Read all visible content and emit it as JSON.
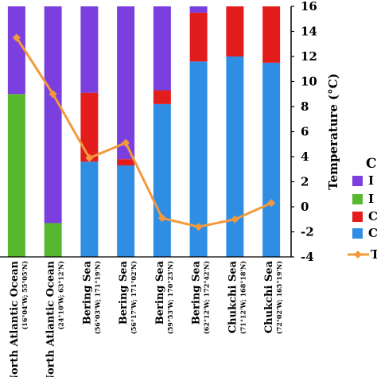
{
  "chart_data": {
    "type": "bar",
    "stacked": true,
    "categories": [
      {
        "name": "North Atlantic Ocean",
        "coord": "(16°04'W; 55°05'N)"
      },
      {
        "name": "North Atlantic Ocean",
        "coord": "(24°10'W; 63°12'N)"
      },
      {
        "name": "Bering Sea",
        "coord": "(56°03'W; 171°19'N)"
      },
      {
        "name": "Bering Sea",
        "coord": "(56°17'W; 171°02'N)"
      },
      {
        "name": "Bering Sea",
        "coord": "(59°53'W; 170°23'N)"
      },
      {
        "name": "Bering Sea",
        "coord": "(62°12'W; 172°42'N)"
      },
      {
        "name": "Chukchi Sea",
        "coord": "(71°12'W; 168°18'N)"
      },
      {
        "name": "Chukchi Sea",
        "coord": "(72°02'W; 165°19'N)"
      }
    ],
    "series": [
      {
        "name": "C",
        "legend_label": "C",
        "color": "#2f8de4",
        "values": [
          null,
          null,
          7.6,
          7.3,
          12.2,
          15.6,
          16.0,
          15.5
        ]
      },
      {
        "name": "C",
        "legend_label": "C",
        "color": "#e31c1c",
        "values": [
          null,
          null,
          5.5,
          0.5,
          1.1,
          3.9,
          4.0,
          4.5
        ]
      },
      {
        "name": "I",
        "legend_label": "I",
        "color": "#57b82f",
        "values": [
          13.0,
          2.7,
          null,
          null,
          null,
          null,
          null,
          null
        ]
      },
      {
        "name": "I",
        "legend_label": "I",
        "color": "#7b3fe0",
        "values": [
          7.0,
          17.3,
          6.9,
          12.2,
          6.7,
          0.5,
          null,
          0.0
        ]
      }
    ],
    "line_series": {
      "name": "T",
      "legend_label": "T",
      "color": "#f29a3c",
      "values": [
        13.5,
        9.0,
        3.9,
        5.1,
        -0.9,
        -1.6,
        -1.0,
        0.3
      ]
    },
    "y_right": {
      "label": "Temperature (°C)",
      "range": [
        -4,
        16
      ],
      "ticks": [
        "-4",
        "-2",
        "0",
        "2",
        "4",
        "6",
        "8",
        "10",
        "12",
        "14",
        "16"
      ]
    },
    "legend_title": "C",
    "legend_placement": "right",
    "grid": false
  }
}
